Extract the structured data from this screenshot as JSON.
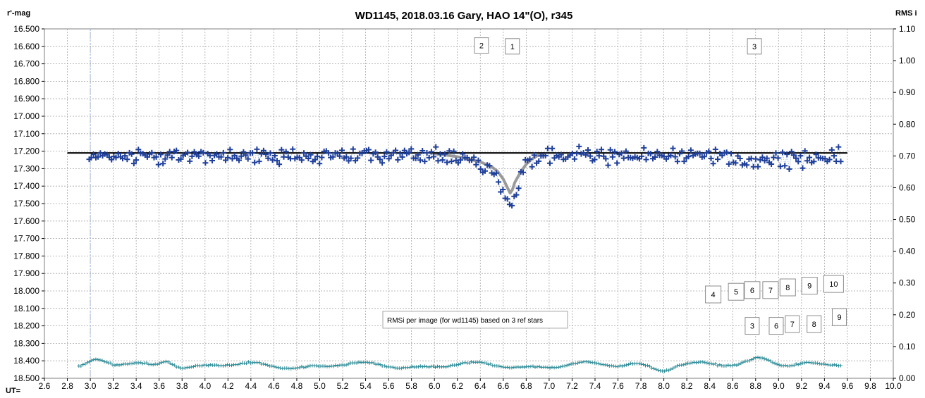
{
  "chart_data": {
    "type": "scatter",
    "title": "WD1145, 2018.03.16  Gary, HAO  14\"(O), r345",
    "ylabel_left": "r'-mag",
    "ylabel_right": "RMS i",
    "xlabel": "UT=",
    "xlim": [
      2.6,
      10.0
    ],
    "ylim_left": [
      16.5,
      18.5
    ],
    "ylim_left_inverted": true,
    "ylim_right": [
      0.0,
      1.1
    ],
    "x_ticks": [
      "2.6",
      "2.8",
      "3.0",
      "3.2",
      "3.4",
      "3.6",
      "3.8",
      "4.0",
      "4.2",
      "4.4",
      "4.6",
      "4.8",
      "5.0",
      "5.2",
      "5.4",
      "5.6",
      "5.8",
      "6.0",
      "6.2",
      "6.4",
      "6.6",
      "6.8",
      "7.0",
      "7.2",
      "7.4",
      "7.6",
      "7.8",
      "8.0",
      "8.2",
      "8.4",
      "8.6",
      "8.8",
      "9.0",
      "9.2",
      "9.4",
      "9.6",
      "9.8",
      "10.0"
    ],
    "y_ticks_left": [
      "16.500",
      "16.600",
      "16.700",
      "16.800",
      "16.900",
      "17.000",
      "17.100",
      "17.200",
      "17.300",
      "17.400",
      "17.500",
      "17.600",
      "17.700",
      "17.800",
      "17.900",
      "18.000",
      "18.100",
      "18.200",
      "18.300",
      "18.400",
      "18.500"
    ],
    "y_ticks_right": [
      "1.10",
      "1.00",
      "0.90",
      "0.80",
      "0.70",
      "0.60",
      "0.50",
      "0.40",
      "0.30",
      "0.20",
      "0.10",
      "0.00"
    ],
    "grid": true,
    "colors": {
      "magnitude": "#1f3f99",
      "magnitude_line": "#8fb0de",
      "rms": "#2a8a95",
      "baseline": "#000000",
      "model": "#9a9a9a"
    },
    "baseline": {
      "x": [
        2.8,
        9.6
      ],
      "y": [
        17.21,
        17.21
      ]
    },
    "model_fit": {
      "x": [
        6.0,
        6.1,
        6.2,
        6.3,
        6.4,
        6.45,
        6.5,
        6.55,
        6.6,
        6.63,
        6.66,
        6.68,
        6.7,
        6.75,
        6.8,
        6.85,
        6.9,
        6.95
      ],
      "y": [
        17.215,
        17.222,
        17.232,
        17.245,
        17.262,
        17.275,
        17.29,
        17.315,
        17.36,
        17.4,
        17.44,
        17.42,
        17.38,
        17.32,
        17.275,
        17.245,
        17.225,
        17.215
      ]
    },
    "annotations_top": [
      {
        "label": "2",
        "x": 6.41,
        "y": 16.595
      },
      {
        "label": "1",
        "x": 6.68,
        "y": 16.6
      },
      {
        "label": "3",
        "x": 8.79,
        "y": 16.6
      }
    ],
    "annotations_mid": [
      {
        "label": "4",
        "x": 8.43,
        "y": 18.02
      },
      {
        "label": "5",
        "x": 8.63,
        "y": 18.005
      },
      {
        "label": "6",
        "x": 8.77,
        "y": 17.995
      },
      {
        "label": "7",
        "x": 8.93,
        "y": 17.995
      },
      {
        "label": "8",
        "x": 9.08,
        "y": 17.98
      },
      {
        "label": "9",
        "x": 9.27,
        "y": 17.97
      },
      {
        "label": "10",
        "x": 9.48,
        "y": 17.96
      }
    ],
    "annotations_low": [
      {
        "label": "3",
        "x": 8.77,
        "y": 18.2
      },
      {
        "label": "6",
        "x": 8.98,
        "y": 18.2
      },
      {
        "label": "7",
        "x": 9.12,
        "y": 18.19
      },
      {
        "label": "8",
        "x": 9.31,
        "y": 18.19
      },
      {
        "label": "9",
        "x": 9.53,
        "y": 18.15
      }
    ],
    "note": "RMSi per image (for wd1145) based on 3 ref stars",
    "note_pos": {
      "x": 5.55,
      "y": 18.165
    }
  }
}
